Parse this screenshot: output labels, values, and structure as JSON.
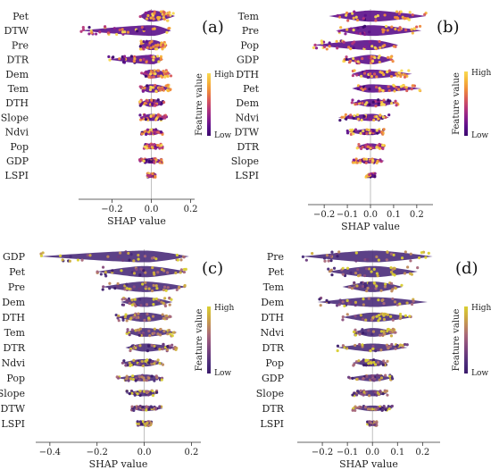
{
  "chart_data": [
    {
      "type": "scatter",
      "panel_label": "(a)",
      "features": [
        "Pet",
        "DTW",
        "Pre",
        "DTR",
        "Dem",
        "Tem",
        "DTH",
        "Slope",
        "Ndvi",
        "Pop",
        "GDP",
        "LSPI"
      ],
      "extents": [
        [
          -0.06,
          0.12
        ],
        [
          -0.36,
          0.1
        ],
        [
          -0.06,
          0.08
        ],
        [
          -0.22,
          0.06
        ],
        [
          -0.05,
          0.1
        ],
        [
          -0.06,
          0.1
        ],
        [
          -0.06,
          0.07
        ],
        [
          -0.06,
          0.08
        ],
        [
          -0.05,
          0.06
        ],
        [
          -0.04,
          0.06
        ],
        [
          -0.06,
          0.06
        ],
        [
          -0.02,
          0.02
        ]
      ],
      "xticks": [
        -0.2,
        0.0,
        0.2
      ],
      "xtick_labels": [
        "−0.2",
        "0.0",
        "0.2"
      ],
      "xlim": [
        -0.37,
        0.22
      ],
      "xlabel": "SHAP value",
      "colorbar": {
        "title": "Feature value",
        "high": "High",
        "low": "Low"
      },
      "cmap": "plasma"
    },
    {
      "type": "scatter",
      "panel_label": "(b)",
      "features": [
        "Tem",
        "Pre",
        "Pop",
        "GDP",
        "DTH",
        "Pet",
        "Dem",
        "Ndvi",
        "DTW",
        "DTR",
        "Slope",
        "LSPI"
      ],
      "extents": [
        [
          -0.18,
          0.24
        ],
        [
          -0.15,
          0.22
        ],
        [
          -0.25,
          0.12
        ],
        [
          -0.12,
          0.1
        ],
        [
          -0.08,
          0.18
        ],
        [
          -0.08,
          0.22
        ],
        [
          -0.08,
          0.12
        ],
        [
          -0.14,
          0.08
        ],
        [
          -0.1,
          0.06
        ],
        [
          -0.06,
          0.06
        ],
        [
          -0.08,
          0.06
        ],
        [
          -0.02,
          0.02
        ]
      ],
      "xticks": [
        -0.2,
        -0.1,
        0.0,
        0.1,
        0.2
      ],
      "xtick_labels": [
        "−0.2",
        "−0.1",
        "0.0",
        "0.1",
        "0.2"
      ],
      "xlim": [
        -0.27,
        0.27
      ],
      "xlabel": "SHAP value",
      "colorbar": {
        "title": "Feature value",
        "high": "High",
        "low": "Low"
      },
      "cmap": "plasma"
    },
    {
      "type": "scatter",
      "panel_label": "(c)",
      "features": [
        "GDP",
        "Pet",
        "Pre",
        "Dem",
        "DTH",
        "Tem",
        "DTR",
        "Ndvi",
        "Pop",
        "Slope",
        "DTW",
        "LSPI"
      ],
      "extents": [
        [
          -0.44,
          0.19
        ],
        [
          -0.2,
          0.18
        ],
        [
          -0.18,
          0.18
        ],
        [
          -0.1,
          0.12
        ],
        [
          -0.12,
          0.12
        ],
        [
          -0.08,
          0.14
        ],
        [
          -0.08,
          0.14
        ],
        [
          -0.1,
          0.08
        ],
        [
          -0.12,
          0.08
        ],
        [
          -0.08,
          0.06
        ],
        [
          -0.06,
          0.08
        ],
        [
          -0.03,
          0.03
        ]
      ],
      "xticks": [
        -0.4,
        -0.2,
        0.0,
        0.2
      ],
      "xtick_labels": [
        "−0.4",
        "−0.2",
        "0.0",
        "0.2"
      ],
      "xlim": [
        -0.46,
        0.24
      ],
      "xlabel": "SHAP value",
      "colorbar": {
        "title": "Feature value",
        "high": "High",
        "low": "Low"
      },
      "cmap": "viridis"
    },
    {
      "type": "scatter",
      "panel_label": "(d)",
      "features": [
        "Pre",
        "Pet",
        "Tem",
        "Dem",
        "DTH",
        "Ndvi",
        "DTR",
        "Pop",
        "GDP",
        "Slope",
        "DTR",
        "LSPI"
      ],
      "extents": [
        [
          -0.28,
          0.24
        ],
        [
          -0.18,
          0.18
        ],
        [
          -0.12,
          0.12
        ],
        [
          -0.22,
          0.22
        ],
        [
          -0.12,
          0.16
        ],
        [
          -0.08,
          0.1
        ],
        [
          -0.14,
          0.14
        ],
        [
          -0.08,
          0.06
        ],
        [
          -0.1,
          0.08
        ],
        [
          -0.08,
          0.06
        ],
        [
          -0.08,
          0.08
        ],
        [
          -0.02,
          0.02
        ]
      ],
      "xticks": [
        -0.2,
        -0.1,
        0.0,
        0.1,
        0.2
      ],
      "xtick_labels": [
        "−0.2",
        "−0.1",
        "0.0",
        "0.1",
        "0.2"
      ],
      "xlim": [
        -0.3,
        0.27
      ],
      "xlabel": "SHAP value",
      "colorbar": {
        "title": "Feature value",
        "high": "High",
        "low": "Low"
      },
      "cmap": "viridis"
    }
  ]
}
